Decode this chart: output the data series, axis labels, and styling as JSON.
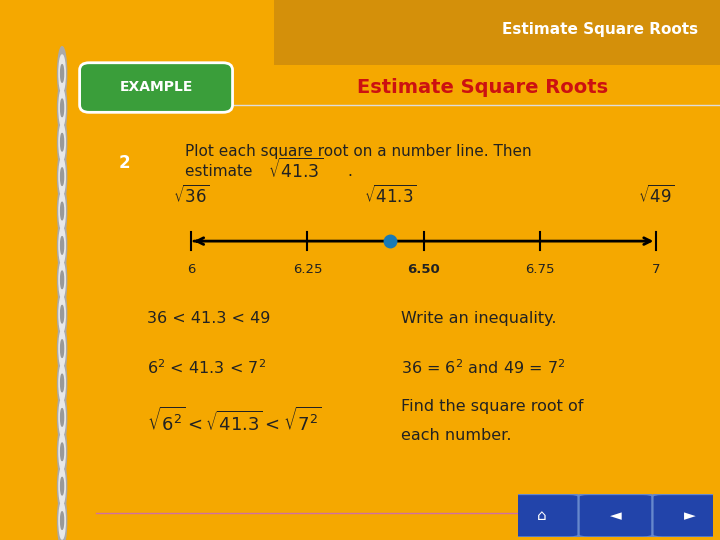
{
  "title": "Estimate Square Roots",
  "header_bg_color": "#F5A800",
  "example_bg_color": "#3A9E3A",
  "example_text": "EXAMPLE",
  "main_title": "Estimate Square Roots",
  "main_title_color": "#CC1111",
  "body_bg_color": "#FFFFFF",
  "spiral_bar_color": "#4A5FA0",
  "spiral_color_light": "#C0C0C0",
  "spiral_color_dark": "#888888",
  "number2_color": "#F5A800",
  "tick_positions": [
    6.0,
    6.25,
    6.5,
    6.75,
    7.0
  ],
  "tick_labels": [
    "6",
    "6.25",
    "6.50",
    "6.75",
    "7"
  ],
  "dot_color": "#1A7AB5",
  "text_color": "#222222",
  "nav_button_color": "#2244AA",
  "bottom_line_color": "#D070A0"
}
